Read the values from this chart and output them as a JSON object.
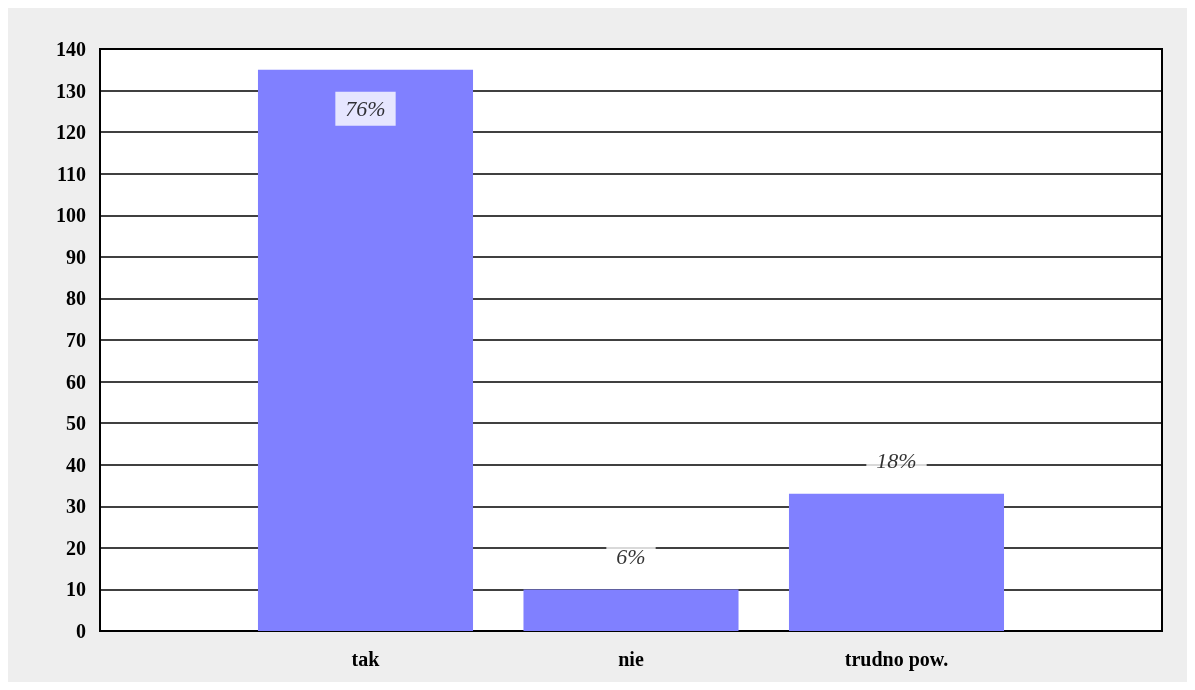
{
  "chart_data": {
    "type": "bar",
    "categories": [
      null,
      "tak",
      "nie",
      "trudno pow.",
      null
    ],
    "values": [
      null,
      135,
      10,
      33,
      null
    ],
    "annotations": [
      {
        "text": "76%",
        "x": "tak",
        "y": 135
      },
      {
        "text": "6%",
        "x": "nie",
        "y": 10
      },
      {
        "text": "18%",
        "x": "trudno pow.",
        "y": 33
      }
    ],
    "color": "#8080ff",
    "ylim": [
      0,
      140
    ],
    "yticks": [
      0,
      10,
      20,
      30,
      40,
      50,
      60,
      70,
      80,
      90,
      100,
      110,
      120,
      130,
      140
    ],
    "grid": "y"
  }
}
